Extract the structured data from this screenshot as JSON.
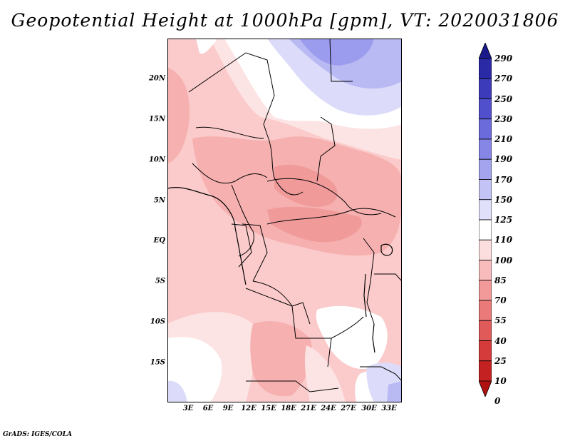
{
  "title": "Geopotential Height at 1000hPa [gpm], VT: 2020031806",
  "credit": "GrADS: IGES/COLA",
  "map": {
    "lat_labels": [
      "20N",
      "15N",
      "10N",
      "5N",
      "EQ",
      "5S",
      "10S",
      "15S"
    ],
    "lon_labels": [
      "3E",
      "6E",
      "9E",
      "12E",
      "15E",
      "18E",
      "21E",
      "24E",
      "27E",
      "30E",
      "33E"
    ]
  },
  "colorbar": {
    "labels": [
      "290",
      "270",
      "250",
      "230",
      "210",
      "190",
      "170",
      "150",
      "125",
      "110",
      "100",
      "85",
      "70",
      "55",
      "40",
      "25",
      "10",
      "0"
    ],
    "colors": [
      "#1a1a8c",
      "#2a2aa6",
      "#3c3cbb",
      "#5050cc",
      "#6b6bdb",
      "#8686e6",
      "#a3a3ee",
      "#c3c3f5",
      "#e0e0fb",
      "#ffffff",
      "#fcdede",
      "#f8bcbc",
      "#f29a9a",
      "#ea7a7a",
      "#e05a5a",
      "#d63b3b",
      "#c42222",
      "#b01010"
    ]
  },
  "field_colors": {
    "white": "#ffffff",
    "light_blue": "#dcdcfa",
    "mid_blue": "#b9b9f3",
    "blue": "#9c9cef",
    "pale_pink": "#fde4e4",
    "pink": "#fbcaca",
    "mid_pink": "#f6b0b0",
    "deep_pink": "#f09a9a",
    "red_pink": "#e88888",
    "border": "#000000"
  }
}
